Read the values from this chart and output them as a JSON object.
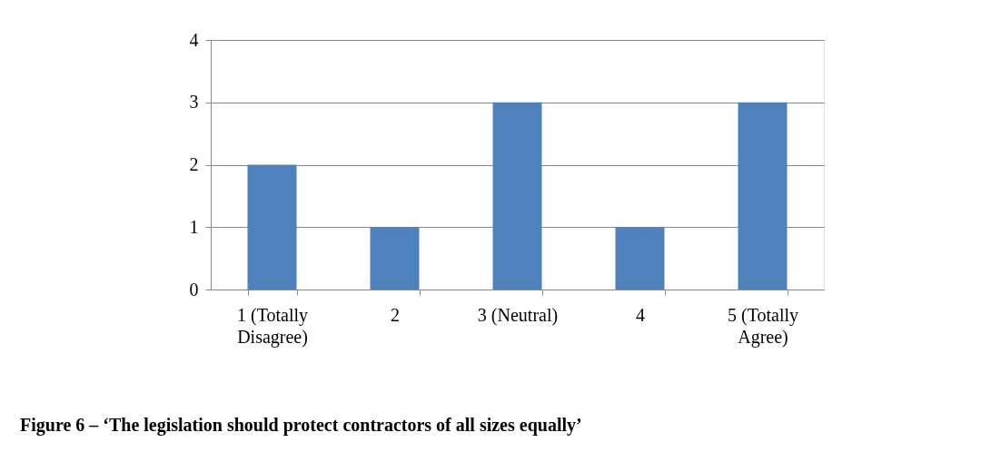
{
  "chart_data": {
    "type": "bar",
    "categories": [
      "1 (Totally Disagree)",
      "2",
      "3 (Neutral)",
      "4",
      "5 (Totally Agree)"
    ],
    "values": [
      2,
      1,
      3,
      1,
      3
    ],
    "color": "#4f81bd",
    "ylim": [
      0,
      4
    ],
    "yticks": [
      0,
      1,
      2,
      3,
      4
    ],
    "grid": "y",
    "annotations": [
      "Figure 6 – ‘The legislation should protect contractors of all sizes equally’"
    ]
  }
}
